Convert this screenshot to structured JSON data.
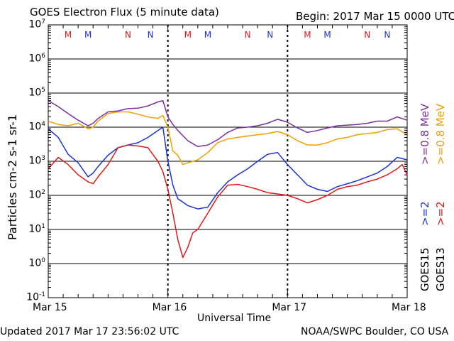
{
  "header": {
    "title": "GOES Electron Flux (5 minute data)",
    "begin": "Begin: 2017 Mar 15 0000 UTC"
  },
  "footer": {
    "updated": "Updated 2017 Mar 17 23:56:02 UTC",
    "credit": "NOAA/SWPC Boulder, CO USA"
  },
  "chart_data": {
    "type": "line",
    "title": "GOES Electron Flux (5 minute data)",
    "xlabel": "Universal Time",
    "ylabel": "Particles cm-2 s-1 sr-1",
    "x_ticks": [
      "Mar 15",
      "Mar 16",
      "Mar 17",
      "Mar 18"
    ],
    "xlim": [
      0,
      72
    ],
    "x_unit": "hours since 2017 Mar 15 00:00 UTC",
    "ylim_log10": [
      -1,
      7
    ],
    "y_ticks": [
      "10^7",
      "10^6",
      "10^5",
      "10^4",
      "10^3",
      "10^2",
      "10^1",
      "10^0",
      "10^-1"
    ],
    "y_scale": "log",
    "threshold": 1000,
    "grid": true,
    "legend_placement": "right",
    "legend": [
      {
        "text": ">=0.8 MeV",
        "color": "#7b2fa0"
      },
      {
        "text": ">=0.8 MeV",
        "color": "#f0a000"
      },
      {
        "text": ">=2",
        "color": "#1a33d6"
      },
      {
        "text": ">=2",
        "color": "#e01818"
      },
      {
        "text": "GOES15",
        "color": "#000000"
      },
      {
        "text": "GOES13",
        "color": "#000000"
      }
    ],
    "annotations": [
      {
        "text": "M",
        "x": 4,
        "color": "#e01818"
      },
      {
        "text": "M",
        "x": 8,
        "color": "#1a33d6"
      },
      {
        "text": "N",
        "x": 16,
        "color": "#e01818"
      },
      {
        "text": "N",
        "x": 20.5,
        "color": "#1a33d6"
      },
      {
        "text": "M",
        "x": 28,
        "color": "#e01818"
      },
      {
        "text": "M",
        "x": 32,
        "color": "#1a33d6"
      },
      {
        "text": "N",
        "x": 40,
        "color": "#e01818"
      },
      {
        "text": "N",
        "x": 44.5,
        "color": "#1a33d6"
      },
      {
        "text": "M",
        "x": 52,
        "color": "#e01818"
      },
      {
        "text": "M",
        "x": 56,
        "color": "#1a33d6"
      },
      {
        "text": "N",
        "x": 64,
        "color": "#e01818"
      },
      {
        "text": "N",
        "x": 68,
        "color": "#1a33d6"
      }
    ],
    "series": [
      {
        "name": "GOES15 >=0.8 MeV",
        "color": "#7b2fa0",
        "x": [
          0,
          2,
          4,
          6,
          8,
          9,
          10,
          12,
          14,
          16,
          18,
          20,
          22,
          23,
          24,
          25,
          26,
          28,
          30,
          32,
          34,
          36,
          38,
          40,
          42,
          44,
          46,
          48,
          50,
          52,
          54,
          56,
          58,
          60,
          62,
          64,
          66,
          68,
          70,
          72
        ],
        "y": [
          60000.0,
          40000.0,
          25000.0,
          16000.0,
          11000.0,
          13000.0,
          18000.0,
          28000.0,
          30000.0,
          35000.0,
          36000.0,
          42000.0,
          55000.0,
          60000.0,
          20000.0,
          12000.0,
          8000.0,
          4000.0,
          2700.0,
          3000.0,
          4300.0,
          7000.0,
          9500.0,
          10000.0,
          11000.0,
          13000.0,
          17000.0,
          14000.0,
          9500.0,
          7000.0,
          8000.0,
          9500.0,
          11000.0,
          11500.0,
          12000.0,
          13000.0,
          15000.0,
          15000.0,
          20000.0,
          16000.0
        ]
      },
      {
        "name": "GOES13 >=0.8 MeV",
        "color": "#f0a000",
        "x": [
          0,
          2,
          4,
          6,
          8,
          9,
          10,
          12,
          14,
          16,
          18,
          20,
          22,
          23,
          24,
          25,
          26,
          27,
          28,
          30,
          32,
          34,
          36,
          38,
          40,
          42,
          44,
          46,
          48,
          50,
          52,
          54,
          56,
          58,
          60,
          62,
          64,
          66,
          68,
          70,
          72
        ],
        "y": [
          15000.0,
          12000.0,
          11000.0,
          13000.0,
          9000.0,
          10000.0,
          15000.0,
          25000.0,
          28000.0,
          28000.0,
          24000.0,
          20000.0,
          18000.0,
          22000.0,
          10000.0,
          2000.0,
          1500.0,
          800,
          900,
          1100.0,
          1800.0,
          3500.0,
          4500.0,
          5000.0,
          5500.0,
          6000.0,
          6500.0,
          7500.0,
          6000.0,
          4000.0,
          3000.0,
          3000.0,
          3500.0,
          4500.0,
          5000.0,
          6000.0,
          6500.0,
          7000.0,
          8500.0,
          9000.0,
          6000.0
        ]
      },
      {
        "name": "GOES15 >=2",
        "color": "#1a33d6",
        "x": [
          0,
          2,
          4,
          6,
          8,
          9,
          10,
          12,
          14,
          16,
          18,
          20,
          22,
          23,
          24,
          25,
          26,
          28,
          30,
          32,
          34,
          36,
          38,
          40,
          42,
          44,
          46,
          48,
          50,
          52,
          54,
          56,
          58,
          60,
          62,
          64,
          66,
          68,
          70,
          72
        ],
        "y": [
          9000.0,
          5000.0,
          1600.0,
          900,
          350,
          450,
          700,
          1500.0,
          2500.0,
          3000.0,
          3500.0,
          5000.0,
          8000.0,
          10000.0,
          1000.0,
          200,
          80,
          50,
          40,
          45,
          120,
          250,
          400,
          600,
          1000.0,
          1600.0,
          1800.0,
          800,
          400,
          200,
          150,
          130,
          180,
          220,
          270,
          350,
          450,
          700,
          1300.0,
          1100.0
        ]
      },
      {
        "name": "GOES13 >=2",
        "color": "#e01818",
        "x": [
          0,
          2,
          4,
          6,
          8,
          9,
          10,
          12,
          14,
          16,
          18,
          20,
          22,
          23,
          24,
          25,
          26,
          27,
          28,
          29,
          30,
          32,
          34,
          36,
          38,
          40,
          42,
          44,
          46,
          48,
          50,
          52,
          54,
          56,
          58,
          60,
          62,
          64,
          66,
          68,
          70,
          71,
          72
        ],
        "y": [
          600,
          1300.0,
          800,
          400,
          250,
          220,
          350,
          800,
          2500.0,
          3000.0,
          2800.0,
          2500.0,
          1000.0,
          500,
          150,
          30,
          5,
          1.5,
          3,
          8,
          10,
          30,
          90,
          200,
          210,
          180,
          150,
          120,
          110,
          100,
          80,
          60,
          75,
          100,
          150,
          180,
          200,
          250,
          300,
          400,
          600,
          800,
          400
        ]
      }
    ]
  }
}
